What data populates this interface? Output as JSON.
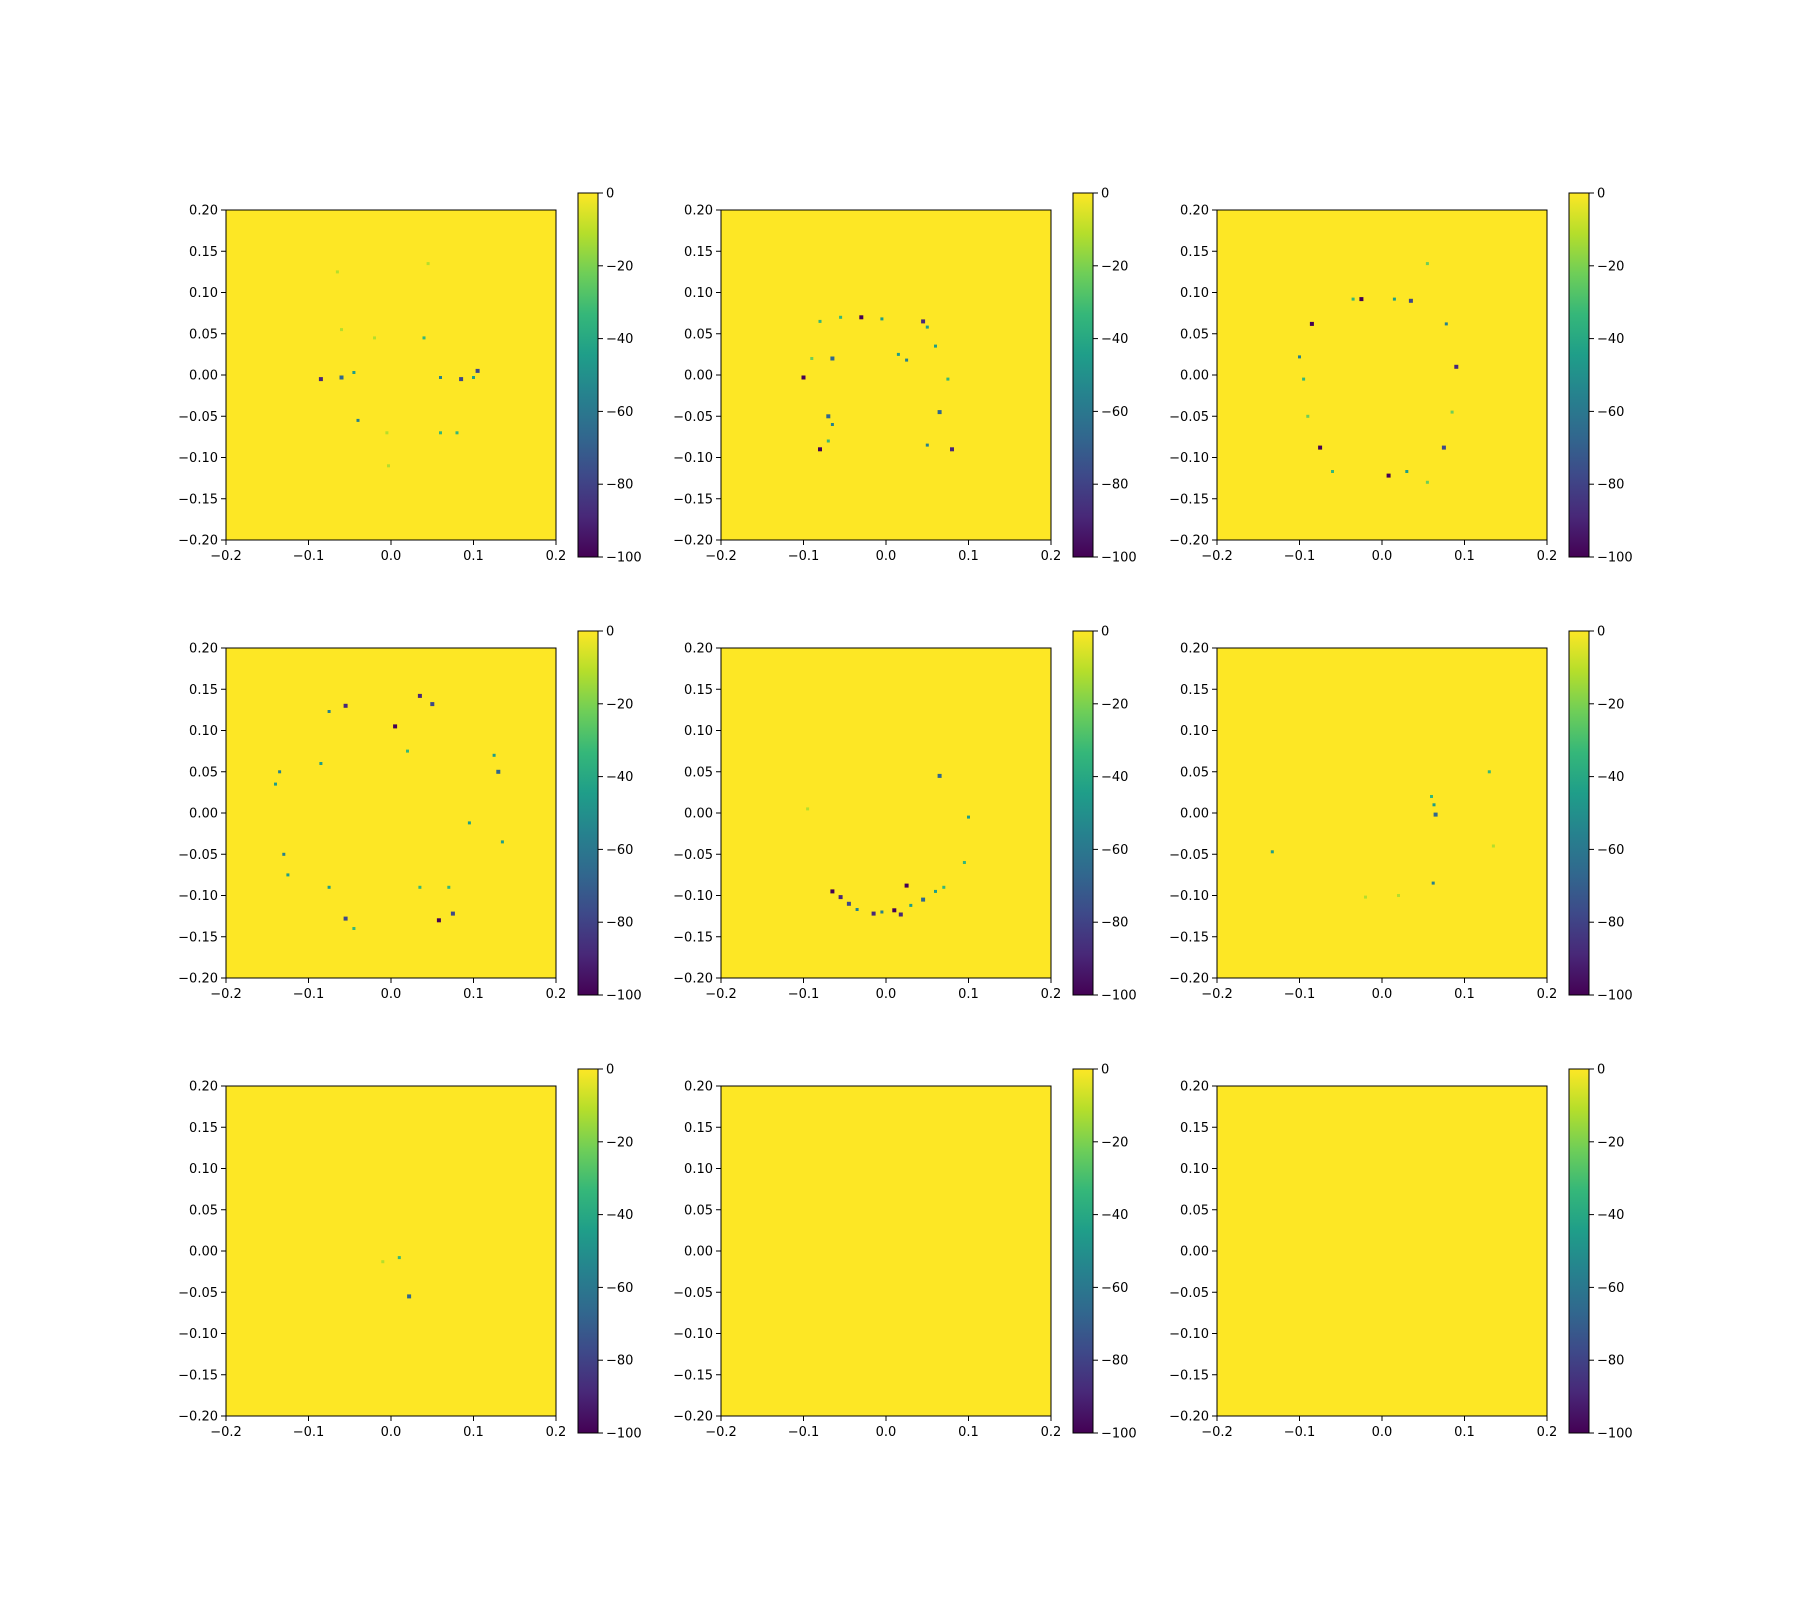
{
  "figure": {
    "layout": "3x3 grid of heatmaps with colorbars"
  },
  "colors": {
    "viridis": [
      "#440154",
      "#482878",
      "#3e4989",
      "#31688e",
      "#26828e",
      "#1f9e89",
      "#35b779",
      "#6ece58",
      "#b5de2b",
      "#fde725"
    ],
    "background": "#fde725",
    "axis": "#000000"
  },
  "chart_data": [
    {
      "type": "heatmap",
      "panel": 1,
      "title": "",
      "xlim": [
        -0.2,
        0.2
      ],
      "ylim": [
        -0.2,
        0.2
      ],
      "xticks": [
        "−0.2",
        "−0.1",
        "0.0",
        "0.1",
        "0.2"
      ],
      "yticks": [
        "−0.20",
        "−0.15",
        "−0.10",
        "−0.05",
        "0.00",
        "0.05",
        "0.10",
        "0.15",
        "0.20"
      ],
      "colorbar": {
        "range": [
          -100,
          0
        ],
        "ticks": [
          "0",
          "−20",
          "−40",
          "−60",
          "−80",
          "−100"
        ]
      },
      "background_value": 0,
      "anomalies": [
        {
          "x": -0.085,
          "y": -0.005,
          "v": -85
        },
        {
          "x": -0.06,
          "y": -0.003,
          "v": -70
        },
        {
          "x": -0.045,
          "y": 0.003,
          "v": -40
        },
        {
          "x": -0.04,
          "y": -0.055,
          "v": -55
        },
        {
          "x": 0.04,
          "y": 0.045,
          "v": -30
        },
        {
          "x": 0.06,
          "y": -0.003,
          "v": -60
        },
        {
          "x": 0.085,
          "y": -0.005,
          "v": -75
        },
        {
          "x": 0.1,
          "y": -0.003,
          "v": -45
        },
        {
          "x": 0.105,
          "y": 0.005,
          "v": -80
        },
        {
          "x": 0.06,
          "y": -0.07,
          "v": -30
        },
        {
          "x": 0.08,
          "y": -0.07,
          "v": -35
        },
        {
          "x": 0.045,
          "y": 0.135,
          "v": -15
        },
        {
          "x": -0.06,
          "y": 0.055,
          "v": -15
        },
        {
          "x": -0.02,
          "y": 0.045,
          "v": -12
        },
        {
          "x": -0.005,
          "y": -0.07,
          "v": -15
        },
        {
          "x": -0.003,
          "y": -0.11,
          "v": -12
        },
        {
          "x": -0.065,
          "y": 0.125,
          "v": -10
        }
      ]
    },
    {
      "type": "heatmap",
      "panel": 2,
      "title": "",
      "xlim": [
        -0.2,
        0.2
      ],
      "ylim": [
        -0.2,
        0.2
      ],
      "xticks": [
        "−0.2",
        "−0.1",
        "0.0",
        "0.1",
        "0.2"
      ],
      "yticks": [
        "−0.20",
        "−0.15",
        "−0.10",
        "−0.05",
        "0.00",
        "0.05",
        "0.10",
        "0.15",
        "0.20"
      ],
      "colorbar": {
        "range": [
          -100,
          0
        ],
        "ticks": [
          "0",
          "−20",
          "−40",
          "−60",
          "−80",
          "−100"
        ]
      },
      "background_value": 0,
      "anomalies": [
        {
          "x": -0.08,
          "y": 0.065,
          "v": -35
        },
        {
          "x": -0.055,
          "y": 0.07,
          "v": -30
        },
        {
          "x": -0.03,
          "y": 0.07,
          "v": -95
        },
        {
          "x": -0.005,
          "y": 0.068,
          "v": -40
        },
        {
          "x": 0.045,
          "y": 0.065,
          "v": -85
        },
        {
          "x": 0.05,
          "y": 0.058,
          "v": -50
        },
        {
          "x": -0.1,
          "y": -0.003,
          "v": -95
        },
        {
          "x": -0.065,
          "y": 0.02,
          "v": -70
        },
        {
          "x": -0.07,
          "y": -0.05,
          "v": -70
        },
        {
          "x": -0.065,
          "y": -0.06,
          "v": -60
        },
        {
          "x": -0.08,
          "y": -0.09,
          "v": -95
        },
        {
          "x": 0.015,
          "y": 0.025,
          "v": -40
        },
        {
          "x": 0.025,
          "y": 0.018,
          "v": -60
        },
        {
          "x": 0.065,
          "y": -0.045,
          "v": -65
        },
        {
          "x": 0.06,
          "y": 0.035,
          "v": -45
        },
        {
          "x": 0.075,
          "y": -0.005,
          "v": -30
        },
        {
          "x": 0.05,
          "y": -0.085,
          "v": -60
        },
        {
          "x": 0.08,
          "y": -0.09,
          "v": -90
        },
        {
          "x": -0.07,
          "y": -0.08,
          "v": -30
        },
        {
          "x": -0.09,
          "y": 0.02,
          "v": -25
        }
      ]
    },
    {
      "type": "heatmap",
      "panel": 3,
      "title": "",
      "xlim": [
        -0.2,
        0.2
      ],
      "ylim": [
        -0.2,
        0.2
      ],
      "xticks": [
        "−0.2",
        "−0.1",
        "0.0",
        "0.1",
        "0.2"
      ],
      "yticks": [
        "−0.20",
        "−0.15",
        "−0.10",
        "−0.05",
        "0.00",
        "0.05",
        "0.10",
        "0.15",
        "0.20"
      ],
      "colorbar": {
        "range": [
          -100,
          0
        ],
        "ticks": [
          "0",
          "−20",
          "−40",
          "−60",
          "−80",
          "−100"
        ]
      },
      "background_value": 0,
      "anomalies": [
        {
          "x": -0.035,
          "y": 0.092,
          "v": -35
        },
        {
          "x": -0.025,
          "y": 0.092,
          "v": -95
        },
        {
          "x": 0.015,
          "y": 0.092,
          "v": -40
        },
        {
          "x": 0.035,
          "y": 0.09,
          "v": -75
        },
        {
          "x": 0.055,
          "y": 0.135,
          "v": -20
        },
        {
          "x": -0.085,
          "y": 0.062,
          "v": -95
        },
        {
          "x": -0.1,
          "y": 0.022,
          "v": -55
        },
        {
          "x": -0.095,
          "y": -0.005,
          "v": -30
        },
        {
          "x": 0.09,
          "y": 0.01,
          "v": -90
        },
        {
          "x": 0.078,
          "y": 0.062,
          "v": -60
        },
        {
          "x": -0.09,
          "y": -0.05,
          "v": -25
        },
        {
          "x": -0.075,
          "y": -0.088,
          "v": -95
        },
        {
          "x": 0.075,
          "y": -0.088,
          "v": -80
        },
        {
          "x": -0.06,
          "y": -0.117,
          "v": -30
        },
        {
          "x": 0.008,
          "y": -0.122,
          "v": -95
        },
        {
          "x": 0.03,
          "y": -0.117,
          "v": -45
        },
        {
          "x": 0.055,
          "y": -0.13,
          "v": -25
        },
        {
          "x": 0.085,
          "y": -0.045,
          "v": -25
        }
      ]
    },
    {
      "type": "heatmap",
      "panel": 4,
      "title": "",
      "xlim": [
        -0.2,
        0.2
      ],
      "ylim": [
        -0.2,
        0.2
      ],
      "xticks": [
        "−0.2",
        "−0.1",
        "0.0",
        "0.1",
        "0.2"
      ],
      "yticks": [
        "−0.20",
        "−0.15",
        "−0.10",
        "−0.05",
        "0.00",
        "0.05",
        "0.10",
        "0.15",
        "0.20"
      ],
      "colorbar": {
        "range": [
          -100,
          0
        ],
        "ticks": [
          "0",
          "−20",
          "−40",
          "−60",
          "−80",
          "−100"
        ]
      },
      "background_value": 0,
      "anomalies": [
        {
          "x": -0.075,
          "y": 0.123,
          "v": -60
        },
        {
          "x": -0.055,
          "y": 0.13,
          "v": -85
        },
        {
          "x": 0.035,
          "y": 0.142,
          "v": -90
        },
        {
          "x": 0.05,
          "y": 0.132,
          "v": -75
        },
        {
          "x": 0.005,
          "y": 0.105,
          "v": -95
        },
        {
          "x": -0.135,
          "y": 0.05,
          "v": -60
        },
        {
          "x": -0.14,
          "y": 0.035,
          "v": -40
        },
        {
          "x": -0.085,
          "y": 0.06,
          "v": -50
        },
        {
          "x": 0.125,
          "y": 0.07,
          "v": -50
        },
        {
          "x": 0.13,
          "y": 0.05,
          "v": -70
        },
        {
          "x": 0.02,
          "y": 0.075,
          "v": -35
        },
        {
          "x": -0.13,
          "y": -0.05,
          "v": -60
        },
        {
          "x": -0.125,
          "y": -0.075,
          "v": -40
        },
        {
          "x": 0.135,
          "y": -0.035,
          "v": -40
        },
        {
          "x": 0.095,
          "y": -0.012,
          "v": -45
        },
        {
          "x": -0.075,
          "y": -0.09,
          "v": -40
        },
        {
          "x": -0.055,
          "y": -0.128,
          "v": -75
        },
        {
          "x": -0.045,
          "y": -0.14,
          "v": -30
        },
        {
          "x": 0.058,
          "y": -0.13,
          "v": -95
        },
        {
          "x": 0.075,
          "y": -0.122,
          "v": -80
        },
        {
          "x": 0.035,
          "y": -0.09,
          "v": -35
        },
        {
          "x": 0.07,
          "y": -0.09,
          "v": -35
        }
      ]
    },
    {
      "type": "heatmap",
      "panel": 5,
      "title": "",
      "xlim": [
        -0.2,
        0.2
      ],
      "ylim": [
        -0.2,
        0.2
      ],
      "xticks": [
        "−0.2",
        "−0.1",
        "0.0",
        "0.1",
        "0.2"
      ],
      "yticks": [
        "−0.20",
        "−0.15",
        "−0.10",
        "−0.05",
        "0.00",
        "0.05",
        "0.10",
        "0.15",
        "0.20"
      ],
      "colorbar": {
        "range": [
          -100,
          0
        ],
        "ticks": [
          "0",
          "−20",
          "−40",
          "−60",
          "−80",
          "−100"
        ]
      },
      "background_value": 0,
      "anomalies": [
        {
          "x": -0.065,
          "y": -0.095,
          "v": -95
        },
        {
          "x": -0.055,
          "y": -0.102,
          "v": -85
        },
        {
          "x": -0.045,
          "y": -0.11,
          "v": -80
        },
        {
          "x": -0.035,
          "y": -0.117,
          "v": -60
        },
        {
          "x": -0.015,
          "y": -0.122,
          "v": -90
        },
        {
          "x": -0.005,
          "y": -0.12,
          "v": -55
        },
        {
          "x": 0.01,
          "y": -0.118,
          "v": -95
        },
        {
          "x": 0.018,
          "y": -0.123,
          "v": -85
        },
        {
          "x": 0.03,
          "y": -0.112,
          "v": -45
        },
        {
          "x": 0.045,
          "y": -0.105,
          "v": -70
        },
        {
          "x": 0.06,
          "y": -0.095,
          "v": -50
        },
        {
          "x": 0.07,
          "y": -0.09,
          "v": -35
        },
        {
          "x": 0.025,
          "y": -0.088,
          "v": -95
        },
        {
          "x": 0.065,
          "y": 0.045,
          "v": -65
        },
        {
          "x": 0.1,
          "y": -0.005,
          "v": -40
        },
        {
          "x": 0.095,
          "y": -0.06,
          "v": -30
        },
        {
          "x": -0.095,
          "y": 0.005,
          "v": -12
        }
      ]
    },
    {
      "type": "heatmap",
      "panel": 6,
      "title": "",
      "xlim": [
        -0.2,
        0.2
      ],
      "ylim": [
        -0.2,
        0.2
      ],
      "xticks": [
        "−0.2",
        "−0.1",
        "0.0",
        "0.1",
        "0.2"
      ],
      "yticks": [
        "−0.20",
        "−0.15",
        "−0.10",
        "−0.05",
        "0.00",
        "0.05",
        "0.10",
        "0.15",
        "0.20"
      ],
      "colorbar": {
        "range": [
          -100,
          0
        ],
        "ticks": [
          "0",
          "−20",
          "−40",
          "−60",
          "−80",
          "−100"
        ]
      },
      "background_value": 0,
      "anomalies": [
        {
          "x": 0.06,
          "y": 0.02,
          "v": -30
        },
        {
          "x": 0.063,
          "y": 0.01,
          "v": -40
        },
        {
          "x": 0.065,
          "y": -0.002,
          "v": -65
        },
        {
          "x": 0.062,
          "y": -0.085,
          "v": -55
        },
        {
          "x": 0.13,
          "y": 0.05,
          "v": -35
        },
        {
          "x": -0.133,
          "y": -0.047,
          "v": -45
        },
        {
          "x": 0.135,
          "y": -0.04,
          "v": -15
        },
        {
          "x": 0.02,
          "y": -0.1,
          "v": -12
        },
        {
          "x": -0.02,
          "y": -0.102,
          "v": -12
        }
      ]
    },
    {
      "type": "heatmap",
      "panel": 7,
      "title": "",
      "xlim": [
        -0.2,
        0.2
      ],
      "ylim": [
        -0.2,
        0.2
      ],
      "xticks": [
        "−0.2",
        "−0.1",
        "0.0",
        "0.1",
        "0.2"
      ],
      "yticks": [
        "−0.20",
        "−0.15",
        "−0.10",
        "−0.05",
        "0.00",
        "0.05",
        "0.10",
        "0.15",
        "0.20"
      ],
      "colorbar": {
        "range": [
          -100,
          0
        ],
        "ticks": [
          "0",
          "−20",
          "−40",
          "−60",
          "−80",
          "−100"
        ]
      },
      "background_value": 0,
      "anomalies": [
        {
          "x": 0.01,
          "y": -0.008,
          "v": -30
        },
        {
          "x": 0.022,
          "y": -0.055,
          "v": -70
        },
        {
          "x": -0.01,
          "y": -0.013,
          "v": -15
        }
      ]
    },
    {
      "type": "heatmap",
      "panel": 8,
      "title": "",
      "xlim": [
        -0.2,
        0.2
      ],
      "ylim": [
        -0.2,
        0.2
      ],
      "xticks": [
        "−0.2",
        "−0.1",
        "0.0",
        "0.1",
        "0.2"
      ],
      "yticks": [
        "−0.20",
        "−0.15",
        "−0.10",
        "−0.05",
        "0.00",
        "0.05",
        "0.10",
        "0.15",
        "0.20"
      ],
      "colorbar": {
        "range": [
          -100,
          0
        ],
        "ticks": [
          "0",
          "−20",
          "−40",
          "−60",
          "−80",
          "−100"
        ]
      },
      "background_value": 0,
      "anomalies": []
    },
    {
      "type": "heatmap",
      "panel": 9,
      "title": "",
      "xlim": [
        -0.2,
        0.2
      ],
      "ylim": [
        -0.2,
        0.2
      ],
      "xticks": [
        "−0.2",
        "−0.1",
        "0.0",
        "0.1",
        "0.2"
      ],
      "yticks": [
        "−0.20",
        "−0.15",
        "−0.10",
        "−0.05",
        "0.00",
        "0.05",
        "0.10",
        "0.15",
        "0.20"
      ],
      "colorbar": {
        "range": [
          -100,
          0
        ],
        "ticks": [
          "0",
          "−20",
          "−40",
          "−60",
          "−80",
          "−100"
        ]
      },
      "background_value": 0,
      "anomalies": []
    }
  ]
}
